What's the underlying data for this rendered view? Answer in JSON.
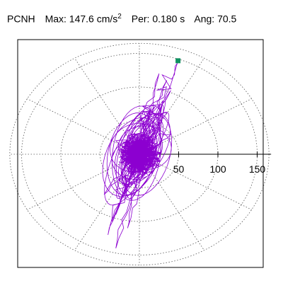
{
  "header": {
    "station": "PCNH",
    "max_label": "Max:",
    "max_value": "147.6",
    "max_unit": "cm/s",
    "max_unit_exp": "2",
    "per_label": "Per:",
    "per_value": "0.180 s",
    "ang_label": "Ang:",
    "ang_value": "70.5"
  },
  "chart_data": {
    "type": "scatter",
    "title": "",
    "xlabel": "",
    "ylabel": "",
    "radial_ticks": [
      50,
      100,
      150
    ],
    "radial_tick_labels": [
      "50",
      "100",
      "150"
    ],
    "rmax": 165,
    "angular_grid_step_deg": 30,
    "grid": true,
    "trace_color": "#8c00d0",
    "marker_color": "#109060",
    "peak_point": {
      "x": 49.2,
      "y": 139.1
    },
    "trace_keypoints": [
      [
        0,
        0
      ],
      [
        12,
        25
      ],
      [
        -8,
        -30
      ],
      [
        20,
        40
      ],
      [
        -18,
        -45
      ],
      [
        30,
        60
      ],
      [
        -25,
        -70
      ],
      [
        40,
        95
      ],
      [
        -30,
        -90
      ],
      [
        35,
        110
      ],
      [
        -20,
        -60
      ],
      [
        25,
        120
      ],
      [
        -35,
        -100
      ],
      [
        49.2,
        139.1
      ],
      [
        10,
        60
      ],
      [
        -40,
        -120
      ],
      [
        15,
        70
      ],
      [
        -30,
        -140
      ],
      [
        20,
        55
      ],
      [
        -15,
        -110
      ],
      [
        30,
        80
      ],
      [
        -45,
        -60
      ],
      [
        40,
        30
      ],
      [
        -30,
        20
      ],
      [
        10,
        -10
      ],
      [
        0,
        0
      ]
    ]
  }
}
